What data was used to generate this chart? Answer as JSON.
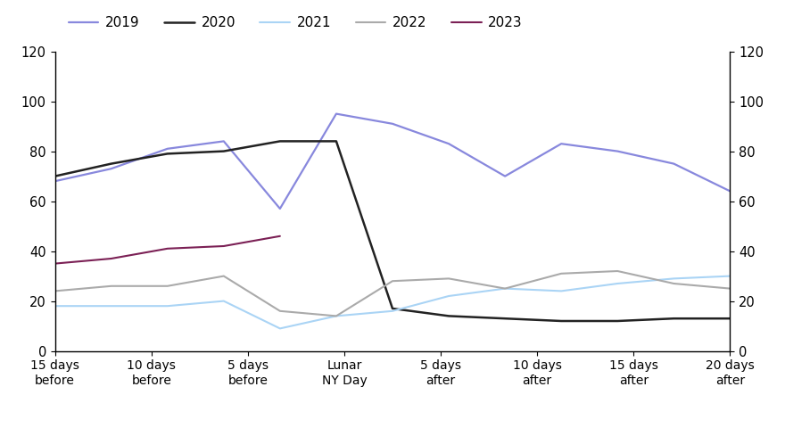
{
  "x_labels": [
    "15 days\nbefore",
    "10 days\nbefore",
    "5 days\nbefore",
    "Lunar\nNY Day",
    "5 days\nafter",
    "10 days\nafter",
    "15 days\nafter",
    "20 days\nafter"
  ],
  "series": {
    "2019": {
      "color": "#8888dd",
      "linewidth": 1.6,
      "values": [
        68,
        73,
        81,
        84,
        57,
        95,
        91,
        83,
        70,
        83,
        80,
        75,
        64
      ]
    },
    "2020": {
      "color": "#222222",
      "linewidth": 1.8,
      "values": [
        70,
        75,
        79,
        80,
        84,
        84,
        17,
        14,
        13,
        12,
        12,
        13,
        13
      ]
    },
    "2021": {
      "color": "#aad4f5",
      "linewidth": 1.5,
      "values": [
        18,
        18,
        18,
        20,
        9,
        14,
        16,
        22,
        25,
        24,
        27,
        29,
        30
      ]
    },
    "2022": {
      "color": "#aaaaaa",
      "linewidth": 1.5,
      "values": [
        24,
        26,
        26,
        30,
        16,
        14,
        28,
        29,
        25,
        31,
        32,
        27,
        25
      ]
    },
    "2023": {
      "color": "#7b2055",
      "linewidth": 1.5,
      "values": [
        35,
        37,
        41,
        42,
        46,
        null,
        null,
        null,
        null,
        null,
        null,
        null,
        null
      ]
    }
  },
  "n_points": 13,
  "n_ticks": 8,
  "ylim": [
    0,
    120
  ],
  "yticks": [
    0,
    20,
    40,
    60,
    80,
    100,
    120
  ],
  "background_color": "#ffffff",
  "legend_order": [
    "2019",
    "2020",
    "2021",
    "2022",
    "2023"
  ]
}
